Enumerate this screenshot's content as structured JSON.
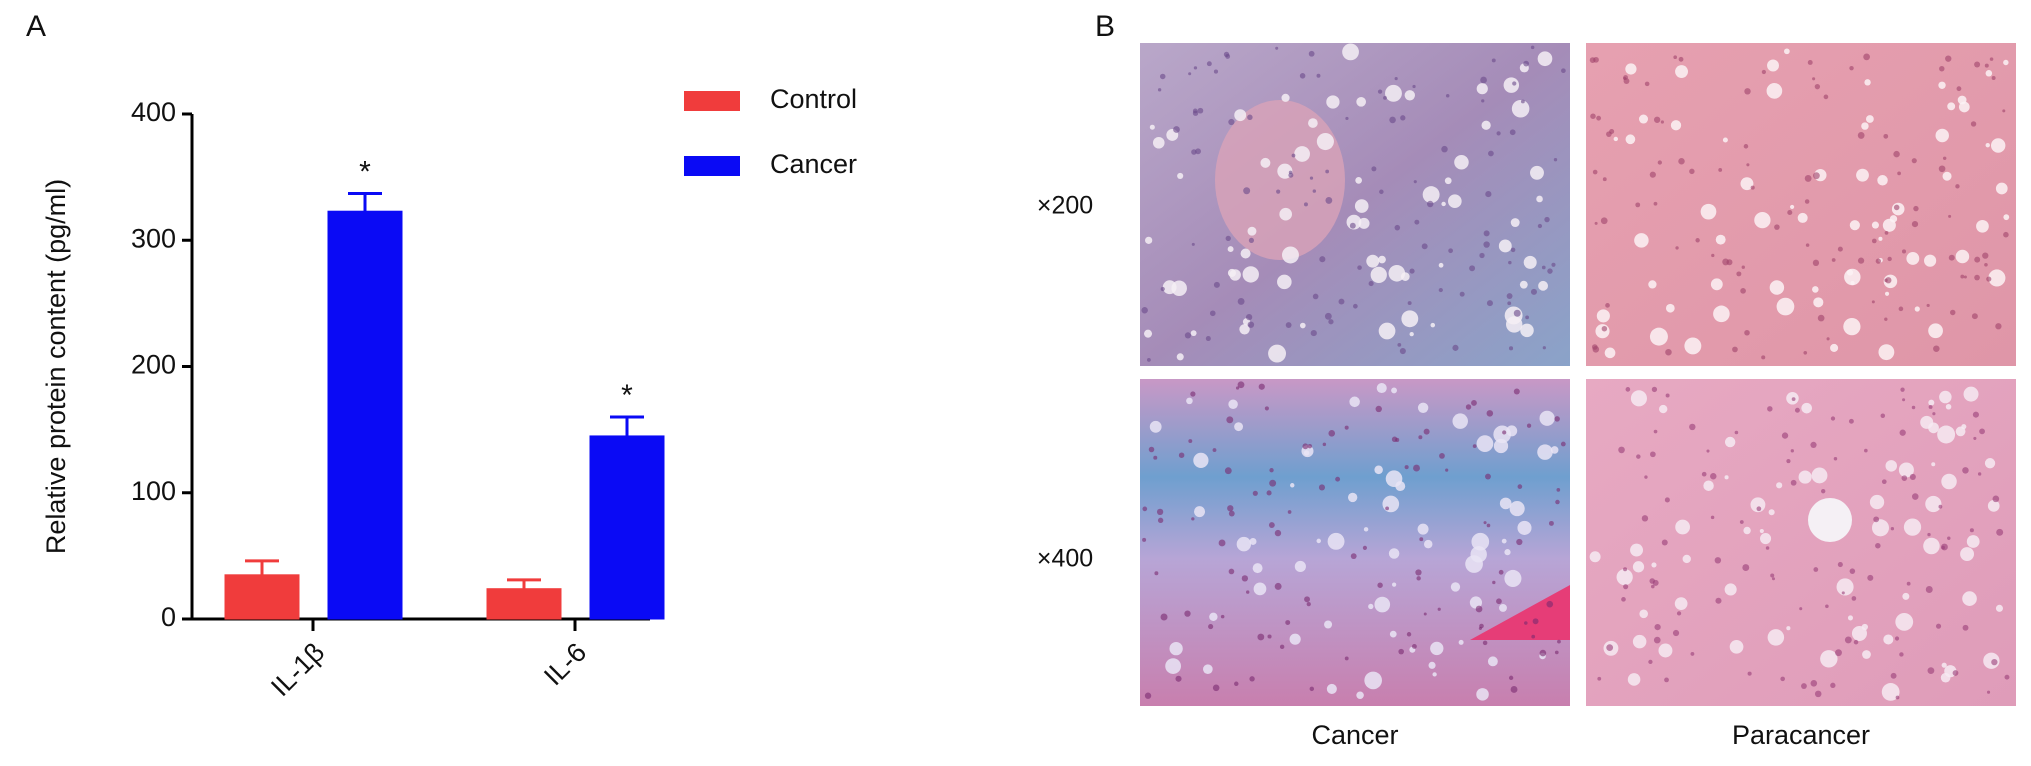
{
  "panel_labels": [
    "A",
    "B"
  ],
  "chart_data": {
    "type": "bar",
    "y_label": "Relative protein content (pg/ml)",
    "categories": [
      "IL-1β",
      "IL-6"
    ],
    "series": [
      {
        "name": "Control",
        "color": "#f03c3c",
        "values": [
          35,
          24
        ],
        "errors": [
          11,
          7
        ]
      },
      {
        "name": "Cancer",
        "color": "#0a0af5",
        "values": [
          323,
          145
        ],
        "errors": [
          14,
          15
        ],
        "markers": [
          "*",
          "*"
        ]
      }
    ],
    "ylim": [
      0,
      400
    ],
    "yticks": [
      0,
      100,
      200,
      300,
      400
    ],
    "grid": false,
    "legend": "upper right"
  },
  "histology": {
    "rows": [
      "×200",
      "×400"
    ],
    "columns": [
      "Cancer",
      "Paracancer"
    ]
  }
}
